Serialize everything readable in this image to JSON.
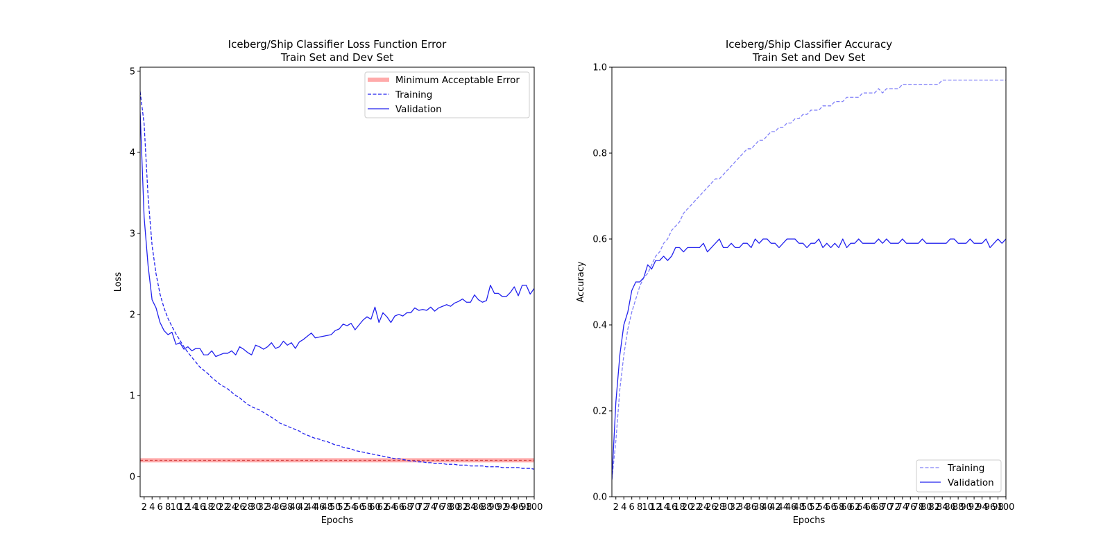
{
  "chart_data": [
    {
      "type": "line",
      "title": "Iceberg/Ship Classifier Loss Function Error\nTrain Set and Dev Set",
      "xlabel": "Epochs",
      "ylabel": "Loss",
      "xlim": [
        1,
        100
      ],
      "ylim": [
        -0.25,
        5.05
      ],
      "xticks": [
        2,
        4,
        6,
        8,
        10,
        12,
        14,
        16,
        18,
        20,
        22,
        24,
        26,
        28,
        30,
        32,
        34,
        36,
        38,
        40,
        42,
        44,
        46,
        48,
        50,
        52,
        54,
        56,
        58,
        60,
        62,
        64,
        66,
        68,
        70,
        72,
        74,
        76,
        78,
        80,
        82,
        84,
        86,
        88,
        90,
        92,
        94,
        96,
        98,
        100
      ],
      "yticks": [
        0,
        1,
        2,
        3,
        4,
        5
      ],
      "grid": false,
      "legend_position": "upper right",
      "reference_line": {
        "name": "Minimum Acceptable Error",
        "y": 0.2,
        "color": "#ff9999"
      },
      "series": [
        {
          "name": "Training",
          "style": "dashed",
          "color": "#2222ee",
          "x": [
            1,
            2,
            3,
            4,
            5,
            6,
            7,
            8,
            9,
            10,
            11,
            12,
            13,
            14,
            15,
            16,
            17,
            18,
            19,
            20,
            21,
            22,
            23,
            24,
            25,
            26,
            27,
            28,
            29,
            30,
            31,
            32,
            33,
            34,
            35,
            36,
            37,
            38,
            39,
            40,
            41,
            42,
            43,
            44,
            45,
            46,
            47,
            48,
            49,
            50,
            51,
            52,
            53,
            54,
            55,
            56,
            57,
            58,
            59,
            60,
            61,
            62,
            63,
            64,
            65,
            66,
            67,
            68,
            69,
            70,
            71,
            72,
            73,
            74,
            75,
            76,
            77,
            78,
            79,
            80,
            81,
            82,
            83,
            84,
            85,
            86,
            87,
            88,
            89,
            90,
            91,
            92,
            93,
            94,
            95,
            96,
            97,
            98,
            99,
            100
          ],
          "values": [
            4.75,
            4.35,
            3.45,
            2.85,
            2.5,
            2.25,
            2.08,
            1.95,
            1.85,
            1.76,
            1.68,
            1.6,
            1.53,
            1.47,
            1.41,
            1.35,
            1.31,
            1.27,
            1.22,
            1.18,
            1.14,
            1.11,
            1.08,
            1.04,
            1.0,
            0.97,
            0.93,
            0.89,
            0.86,
            0.84,
            0.82,
            0.79,
            0.76,
            0.73,
            0.7,
            0.66,
            0.64,
            0.62,
            0.6,
            0.58,
            0.56,
            0.53,
            0.51,
            0.49,
            0.47,
            0.46,
            0.44,
            0.43,
            0.41,
            0.39,
            0.38,
            0.36,
            0.35,
            0.34,
            0.32,
            0.31,
            0.3,
            0.29,
            0.28,
            0.27,
            0.26,
            0.25,
            0.24,
            0.23,
            0.22,
            0.22,
            0.21,
            0.2,
            0.19,
            0.19,
            0.18,
            0.18,
            0.17,
            0.17,
            0.16,
            0.16,
            0.16,
            0.15,
            0.15,
            0.15,
            0.14,
            0.14,
            0.14,
            0.13,
            0.13,
            0.13,
            0.13,
            0.12,
            0.12,
            0.12,
            0.12,
            0.11,
            0.11,
            0.11,
            0.11,
            0.11,
            0.1,
            0.1,
            0.1,
            0.09
          ]
        },
        {
          "name": "Validation",
          "style": "solid",
          "color": "#2222ee",
          "x": [
            1,
            2,
            3,
            4,
            5,
            6,
            7,
            8,
            9,
            10,
            11,
            12,
            13,
            14,
            15,
            16,
            17,
            18,
            19,
            20,
            21,
            22,
            23,
            24,
            25,
            26,
            27,
            28,
            29,
            30,
            31,
            32,
            33,
            34,
            35,
            36,
            37,
            38,
            39,
            40,
            41,
            42,
            43,
            44,
            45,
            46,
            47,
            48,
            49,
            50,
            51,
            52,
            53,
            54,
            55,
            56,
            57,
            58,
            59,
            60,
            61,
            62,
            63,
            64,
            65,
            66,
            67,
            68,
            69,
            70,
            71,
            72,
            73,
            74,
            75,
            76,
            77,
            78,
            79,
            80,
            81,
            82,
            83,
            84,
            85,
            86,
            87,
            88,
            89,
            90,
            91,
            92,
            93,
            94,
            95,
            96,
            97,
            98,
            99,
            100
          ],
          "values": [
            4.5,
            3.2,
            2.6,
            2.18,
            2.08,
            1.9,
            1.8,
            1.75,
            1.78,
            1.63,
            1.65,
            1.57,
            1.6,
            1.55,
            1.58,
            1.58,
            1.5,
            1.5,
            1.55,
            1.48,
            1.5,
            1.52,
            1.52,
            1.55,
            1.5,
            1.6,
            1.57,
            1.53,
            1.5,
            1.62,
            1.6,
            1.57,
            1.6,
            1.65,
            1.58,
            1.6,
            1.67,
            1.62,
            1.65,
            1.58,
            1.66,
            1.69,
            1.73,
            1.77,
            1.71,
            1.72,
            1.73,
            1.74,
            1.75,
            1.8,
            1.82,
            1.88,
            1.86,
            1.89,
            1.81,
            1.87,
            1.93,
            1.97,
            1.94,
            2.09,
            1.9,
            2.02,
            1.97,
            1.9,
            1.98,
            2.0,
            1.98,
            2.02,
            2.02,
            2.08,
            2.05,
            2.06,
            2.05,
            2.09,
            2.04,
            2.08,
            2.1,
            2.12,
            2.1,
            2.14,
            2.16,
            2.19,
            2.15,
            2.15,
            2.24,
            2.18,
            2.15,
            2.17,
            2.36,
            2.26,
            2.26,
            2.22,
            2.22,
            2.27,
            2.34,
            2.23,
            2.36,
            2.36,
            2.25,
            2.32
          ]
        }
      ]
    },
    {
      "type": "line",
      "title": "Iceberg/Ship Classifier Accuracy\nTrain Set and Dev Set",
      "xlabel": "Epochs",
      "ylabel": "Accuracy",
      "xlim": [
        1,
        100
      ],
      "ylim": [
        0.0,
        1.0
      ],
      "xticks": [
        2,
        4,
        6,
        8,
        10,
        12,
        14,
        16,
        18,
        20,
        22,
        24,
        26,
        28,
        30,
        32,
        34,
        36,
        38,
        40,
        42,
        44,
        46,
        48,
        50,
        52,
        54,
        56,
        58,
        60,
        62,
        64,
        66,
        68,
        70,
        72,
        74,
        76,
        78,
        80,
        82,
        84,
        86,
        88,
        90,
        92,
        94,
        96,
        98,
        100
      ],
      "yticks": [
        0.0,
        0.2,
        0.4,
        0.6,
        0.8,
        1.0
      ],
      "grid": false,
      "legend_position": "lower right",
      "series": [
        {
          "name": "Training",
          "style": "dashed",
          "color": "#8080f8",
          "x": [
            1,
            2,
            3,
            4,
            5,
            6,
            7,
            8,
            9,
            10,
            11,
            12,
            13,
            14,
            15,
            16,
            17,
            18,
            19,
            20,
            21,
            22,
            23,
            24,
            25,
            26,
            27,
            28,
            29,
            30,
            31,
            32,
            33,
            34,
            35,
            36,
            37,
            38,
            39,
            40,
            41,
            42,
            43,
            44,
            45,
            46,
            47,
            48,
            49,
            50,
            51,
            52,
            53,
            54,
            55,
            56,
            57,
            58,
            59,
            60,
            61,
            62,
            63,
            64,
            65,
            66,
            67,
            68,
            69,
            70,
            71,
            72,
            73,
            74,
            75,
            76,
            77,
            78,
            79,
            80,
            81,
            82,
            83,
            84,
            85,
            86,
            87,
            88,
            89,
            90,
            91,
            92,
            93,
            94,
            95,
            96,
            97,
            98,
            99,
            100
          ],
          "values": [
            0.04,
            0.13,
            0.25,
            0.33,
            0.39,
            0.43,
            0.46,
            0.49,
            0.51,
            0.52,
            0.54,
            0.56,
            0.57,
            0.59,
            0.6,
            0.62,
            0.63,
            0.64,
            0.66,
            0.67,
            0.68,
            0.69,
            0.7,
            0.71,
            0.72,
            0.73,
            0.74,
            0.74,
            0.75,
            0.76,
            0.77,
            0.78,
            0.79,
            0.8,
            0.81,
            0.81,
            0.82,
            0.83,
            0.83,
            0.84,
            0.85,
            0.85,
            0.86,
            0.86,
            0.87,
            0.87,
            0.88,
            0.88,
            0.89,
            0.89,
            0.9,
            0.9,
            0.9,
            0.91,
            0.91,
            0.91,
            0.92,
            0.92,
            0.92,
            0.93,
            0.93,
            0.93,
            0.93,
            0.94,
            0.94,
            0.94,
            0.94,
            0.95,
            0.94,
            0.95,
            0.95,
            0.95,
            0.95,
            0.96,
            0.96,
            0.96,
            0.96,
            0.96,
            0.96,
            0.96,
            0.96,
            0.96,
            0.96,
            0.97,
            0.97,
            0.97,
            0.97,
            0.97,
            0.97,
            0.97,
            0.97,
            0.97,
            0.97,
            0.97,
            0.97,
            0.97,
            0.97,
            0.97,
            0.97,
            0.97
          ]
        },
        {
          "name": "Validation",
          "style": "solid",
          "color": "#2222ee",
          "x": [
            1,
            2,
            3,
            4,
            5,
            6,
            7,
            8,
            9,
            10,
            11,
            12,
            13,
            14,
            15,
            16,
            17,
            18,
            19,
            20,
            21,
            22,
            23,
            24,
            25,
            26,
            27,
            28,
            29,
            30,
            31,
            32,
            33,
            34,
            35,
            36,
            37,
            38,
            39,
            40,
            41,
            42,
            43,
            44,
            45,
            46,
            47,
            48,
            49,
            50,
            51,
            52,
            53,
            54,
            55,
            56,
            57,
            58,
            59,
            60,
            61,
            62,
            63,
            64,
            65,
            66,
            67,
            68,
            69,
            70,
            71,
            72,
            73,
            74,
            75,
            76,
            77,
            78,
            79,
            80,
            81,
            82,
            83,
            84,
            85,
            86,
            87,
            88,
            89,
            90,
            91,
            92,
            93,
            94,
            95,
            96,
            97,
            98,
            99,
            100
          ],
          "values": [
            0.04,
            0.22,
            0.33,
            0.4,
            0.43,
            0.48,
            0.5,
            0.5,
            0.51,
            0.54,
            0.53,
            0.55,
            0.55,
            0.56,
            0.55,
            0.56,
            0.58,
            0.58,
            0.57,
            0.58,
            0.58,
            0.58,
            0.58,
            0.59,
            0.57,
            0.58,
            0.59,
            0.6,
            0.58,
            0.58,
            0.59,
            0.58,
            0.58,
            0.59,
            0.59,
            0.58,
            0.6,
            0.59,
            0.6,
            0.6,
            0.59,
            0.59,
            0.58,
            0.59,
            0.6,
            0.6,
            0.6,
            0.59,
            0.59,
            0.58,
            0.59,
            0.59,
            0.6,
            0.58,
            0.59,
            0.58,
            0.59,
            0.58,
            0.6,
            0.58,
            0.59,
            0.59,
            0.6,
            0.59,
            0.59,
            0.59,
            0.59,
            0.6,
            0.59,
            0.6,
            0.59,
            0.59,
            0.59,
            0.6,
            0.59,
            0.59,
            0.59,
            0.59,
            0.6,
            0.59,
            0.59,
            0.59,
            0.59,
            0.59,
            0.59,
            0.6,
            0.6,
            0.59,
            0.59,
            0.59,
            0.6,
            0.59,
            0.59,
            0.59,
            0.6,
            0.58,
            0.59,
            0.6,
            0.59,
            0.6
          ]
        }
      ]
    }
  ]
}
